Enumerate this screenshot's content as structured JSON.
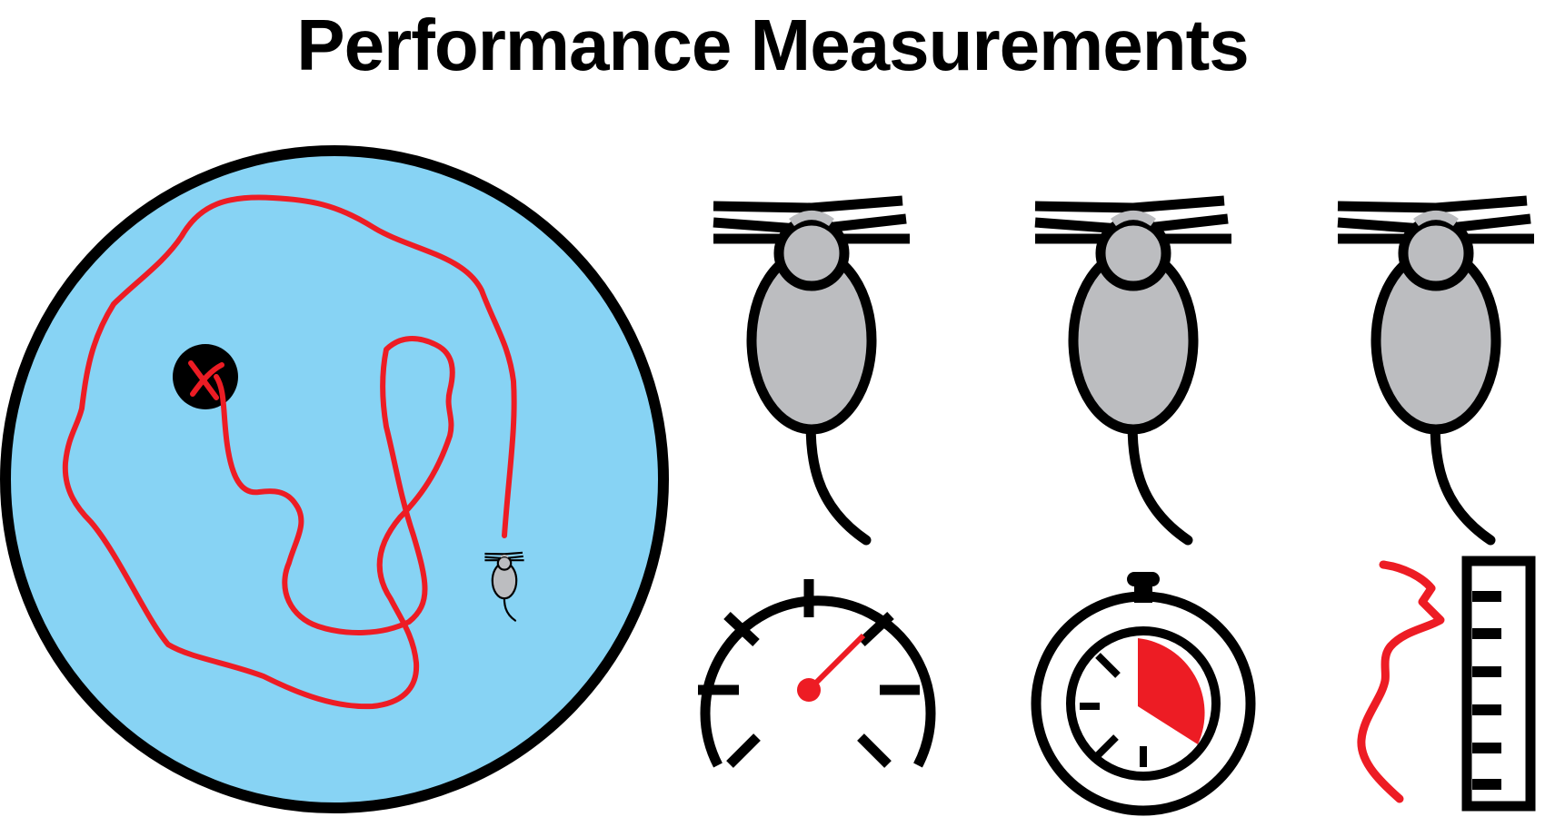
{
  "title": "Performance Measurements",
  "icons": {
    "pool": "water-maze-icon",
    "swim_path": "swim-path-icon",
    "platform": "hidden-platform-icon",
    "small_mouse": "swimming-mouse-icon",
    "mouse": "mouse-icon",
    "speedometer": "speedometer-icon",
    "stopwatch": "stopwatch-icon",
    "path_length": "path-length-icon",
    "ruler": "ruler-icon"
  },
  "colors": {
    "water": "#87d3f4",
    "path": "#ed1c24",
    "outline": "#000000",
    "mouse_fill": "#bcbdc0",
    "background": "#ffffff"
  }
}
